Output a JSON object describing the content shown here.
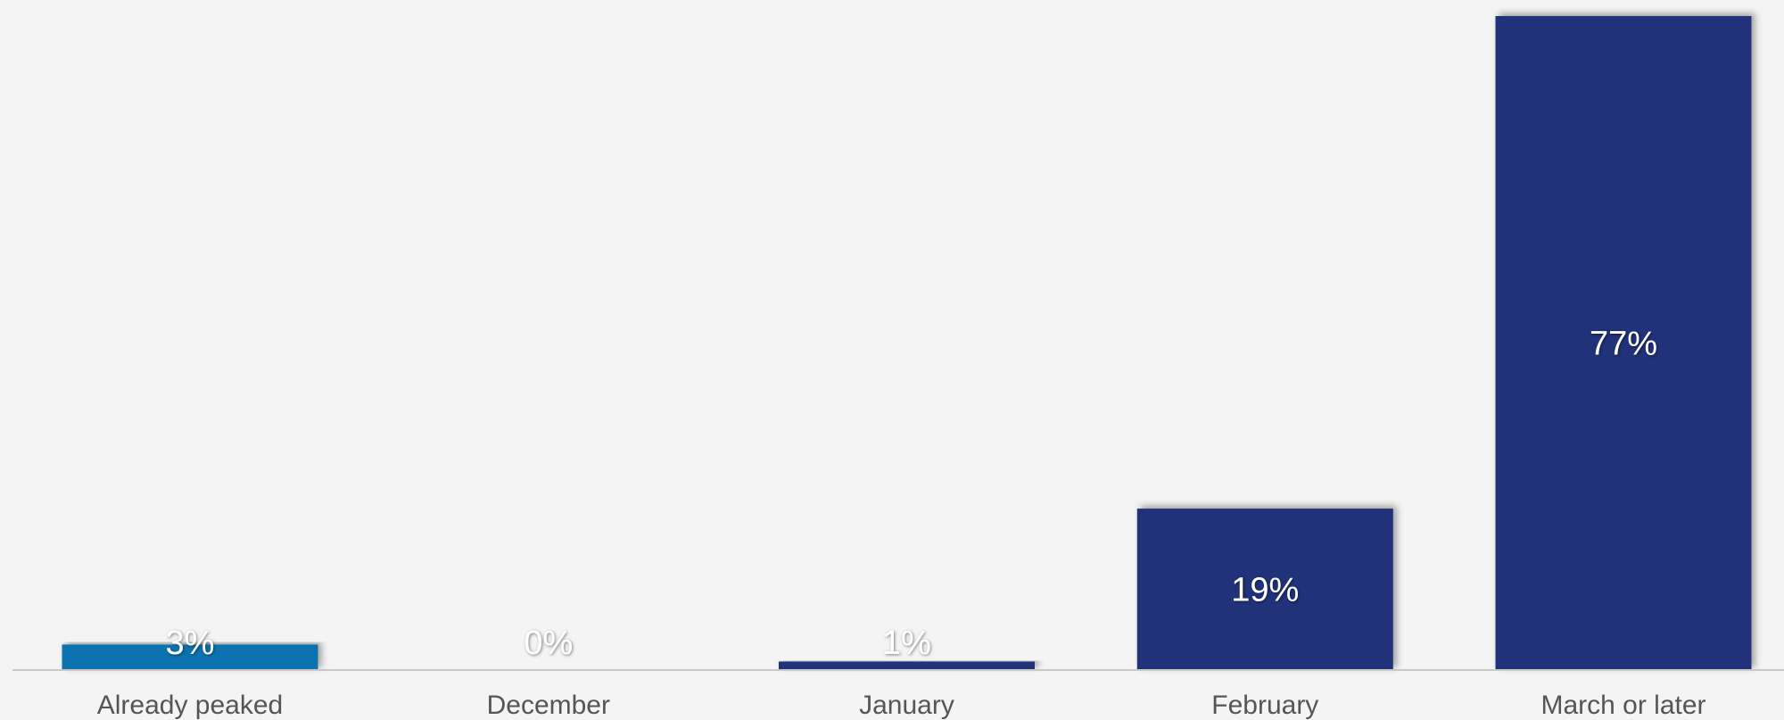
{
  "chart_data": {
    "type": "bar",
    "title": "",
    "xlabel": "",
    "ylabel": "",
    "categories": [
      "Already peaked",
      "December",
      "January",
      "February",
      "March or later"
    ],
    "values": [
      3,
      0,
      1,
      19,
      77
    ],
    "value_labels": [
      "3%",
      "0%",
      "1%",
      "19%",
      "77%"
    ],
    "bar_colors": [
      "#1172b0",
      "#21307a",
      "#21307a",
      "#21307a",
      "#21307a"
    ],
    "ylim": [
      0,
      77
    ],
    "grid": false,
    "legend": "none"
  }
}
